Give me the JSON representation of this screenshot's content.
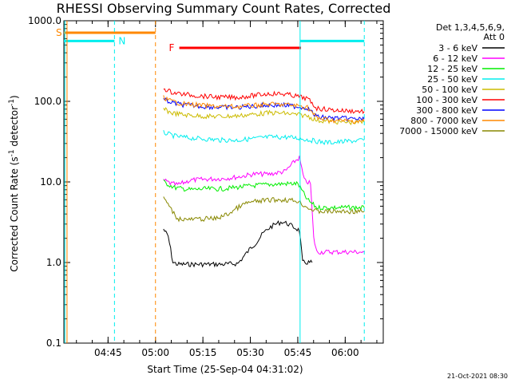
{
  "chart_data": {
    "type": "line",
    "title": "RHESSI Observing Summary Count Rates, Corrected",
    "xlabel": "Start Time (25-Sep-04 04:31:02)",
    "ylabel_main": "Corrected Count Rate (s",
    "ylabel_sup1": "-1",
    "ylabel_mid": " detector",
    "ylabel_sup2": "-1",
    "ylabel_end": ")",
    "x_range_minutes": [
      0,
      101
    ],
    "y_scale": "log",
    "ylim": [
      0.1,
      1000.0
    ],
    "x_ticks": [
      {
        "label": "04:45",
        "minute": 13.97
      },
      {
        "label": "05:00",
        "minute": 28.97
      },
      {
        "label": "05:15",
        "minute": 43.97
      },
      {
        "label": "05:30",
        "minute": 58.97
      },
      {
        "label": "05:45",
        "minute": 73.97
      },
      {
        "label": "06:00",
        "minute": 88.97
      }
    ],
    "y_ticks": [
      {
        "label": "0.1",
        "value": 0.1
      },
      {
        "label": "1.0",
        "value": 1.0
      },
      {
        "label": "10.0",
        "value": 10.0
      },
      {
        "label": "100.0",
        "value": 100.0
      },
      {
        "label": "1000.0",
        "value": 1000.0
      }
    ],
    "legend_header": [
      "Det 1,3,4,5,6,9,",
      "Att 0"
    ],
    "series": [
      {
        "name": "3 - 6 keV",
        "color": "#000000",
        "points": [
          [
            31.5,
            2.6
          ],
          [
            33.0,
            2.1
          ],
          [
            34.5,
            1.0
          ],
          [
            36.0,
            0.95
          ],
          [
            40,
            0.95
          ],
          [
            45,
            0.95
          ],
          [
            50,
            0.95
          ],
          [
            55,
            0.97
          ],
          [
            57,
            1.2
          ],
          [
            59,
            1.5
          ],
          [
            61,
            1.8
          ],
          [
            63,
            2.3
          ],
          [
            65,
            2.7
          ],
          [
            67,
            3.0
          ],
          [
            69,
            3.2
          ],
          [
            71,
            3.0
          ],
          [
            73,
            2.7
          ],
          [
            74.5,
            2.5
          ],
          [
            75.5,
            1.0
          ],
          [
            78.5,
            1.0
          ]
        ]
      },
      {
        "name": "6 - 12 keV",
        "color": "#ff00ff",
        "points": [
          [
            31.5,
            10.5
          ],
          [
            34,
            9.5
          ],
          [
            36,
            9.2
          ],
          [
            40,
            10.5
          ],
          [
            45,
            10.8
          ],
          [
            50,
            11.0
          ],
          [
            55,
            11.5
          ],
          [
            60,
            12.5
          ],
          [
            65,
            12.5
          ],
          [
            70,
            13.5
          ],
          [
            73,
            18.0
          ],
          [
            74.5,
            20.0
          ],
          [
            76,
            10.5
          ],
          [
            78,
            9.5
          ],
          [
            79,
            2.0
          ],
          [
            80,
            1.35
          ],
          [
            95,
            1.35
          ]
        ]
      },
      {
        "name": "12 - 25 keV",
        "color": "#00ee00",
        "points": [
          [
            31.5,
            10.0
          ],
          [
            35,
            8.5
          ],
          [
            40,
            8.0
          ],
          [
            45,
            8.2
          ],
          [
            50,
            8.2
          ],
          [
            55,
            8.6
          ],
          [
            60,
            9.0
          ],
          [
            65,
            9.3
          ],
          [
            70,
            9.5
          ],
          [
            74,
            9.5
          ],
          [
            77,
            6.0
          ],
          [
            80,
            4.8
          ],
          [
            95,
            4.8
          ]
        ]
      },
      {
        "name": "25 - 50 keV",
        "color": "#00eeee",
        "points": [
          [
            31.5,
            41.0
          ],
          [
            35,
            37.0
          ],
          [
            40,
            35.0
          ],
          [
            45,
            34.0
          ],
          [
            50,
            33.0
          ],
          [
            55,
            33.0
          ],
          [
            60,
            34.5
          ],
          [
            65,
            36.0
          ],
          [
            70,
            36.0
          ],
          [
            74,
            35.0
          ],
          [
            78,
            33.0
          ],
          [
            82,
            31.0
          ],
          [
            86,
            31.0
          ],
          [
            90,
            32.0
          ],
          [
            95,
            33.0
          ]
        ]
      },
      {
        "name": "50 - 100 keV",
        "color": "#ccbb00",
        "points": [
          [
            31.5,
            80.0
          ],
          [
            34,
            72.0
          ],
          [
            38,
            68.0
          ],
          [
            45,
            65.0
          ],
          [
            50,
            65.0
          ],
          [
            55,
            66.0
          ],
          [
            60,
            69.0
          ],
          [
            65,
            72.0
          ],
          [
            70,
            71.0
          ],
          [
            74,
            68.0
          ],
          [
            77,
            66.0
          ],
          [
            80,
            58.0
          ],
          [
            85,
            56.0
          ],
          [
            90,
            55.0
          ],
          [
            95,
            55.0
          ]
        ]
      },
      {
        "name": "100 - 300 keV",
        "color": "#ff0000",
        "points": [
          [
            31.5,
            145.0
          ],
          [
            34,
            130.0
          ],
          [
            38,
            122.0
          ],
          [
            45,
            115.0
          ],
          [
            50,
            112.0
          ],
          [
            55,
            112.0
          ],
          [
            60,
            118.0
          ],
          [
            65,
            125.0
          ],
          [
            70,
            123.0
          ],
          [
            74,
            115.0
          ],
          [
            77,
            108.0
          ],
          [
            80,
            82.0
          ],
          [
            85,
            78.0
          ],
          [
            90,
            76.0
          ],
          [
            95,
            75.0
          ]
        ]
      },
      {
        "name": "300 - 800 keV",
        "color": "#0000ff",
        "points": [
          [
            31.5,
            105.0
          ],
          [
            34,
            96.0
          ],
          [
            38,
            90.0
          ],
          [
            45,
            86.0
          ],
          [
            50,
            84.0
          ],
          [
            55,
            84.0
          ],
          [
            60,
            87.0
          ],
          [
            65,
            90.0
          ],
          [
            70,
            89.0
          ],
          [
            74,
            86.0
          ],
          [
            77,
            83.0
          ],
          [
            80,
            64.0
          ],
          [
            85,
            62.0
          ],
          [
            90,
            61.0
          ],
          [
            95,
            60.0
          ]
        ]
      },
      {
        "name": "800 - 7000 keV",
        "color": "#ff8800",
        "points": [
          [
            31.5,
            112.0
          ],
          [
            34,
            100.0
          ],
          [
            38,
            93.0
          ],
          [
            45,
            88.0
          ],
          [
            50,
            86.0
          ],
          [
            55,
            86.0
          ],
          [
            60,
            89.0
          ],
          [
            65,
            92.0
          ],
          [
            70,
            91.0
          ],
          [
            74,
            88.0
          ],
          [
            77,
            85.0
          ],
          [
            80,
            62.0
          ],
          [
            85,
            58.0
          ],
          [
            90,
            57.0
          ],
          [
            95,
            57.0
          ]
        ]
      },
      {
        "name": "7000 - 15000 keV",
        "color": "#888800",
        "points": [
          [
            31.5,
            6.5
          ],
          [
            34,
            4.5
          ],
          [
            36,
            3.5
          ],
          [
            40,
            3.4
          ],
          [
            45,
            3.5
          ],
          [
            48,
            3.5
          ],
          [
            52,
            4.0
          ],
          [
            55,
            4.8
          ],
          [
            58,
            5.5
          ],
          [
            62,
            5.8
          ],
          [
            66,
            6.0
          ],
          [
            70,
            6.0
          ],
          [
            74,
            5.8
          ],
          [
            77,
            4.8
          ],
          [
            80,
            4.3
          ],
          [
            90,
            4.3
          ],
          [
            95,
            4.3
          ]
        ]
      }
    ],
    "markers": {
      "s_label": "S",
      "n_label": "N",
      "f_label": "F",
      "saa": {
        "y_value": 710.0,
        "color": "#ff8800",
        "ranges": [
          [
            0,
            28.97
          ]
        ]
      },
      "night": {
        "y_value": 560.0,
        "color": "#00eeee",
        "ranges": [
          [
            0,
            16.0
          ],
          [
            74.7,
            95.0
          ]
        ]
      },
      "flare": {
        "y_value": 460.0,
        "color": "#ff0000",
        "ranges": [
          [
            36.5,
            75.0
          ]
        ]
      },
      "vlines": [
        {
          "minute": 0.3,
          "style": "solid",
          "color": "#00eeee"
        },
        {
          "minute": 1.0,
          "style": "solid",
          "color": "#ff8800"
        },
        {
          "minute": 16.0,
          "style": "dashed",
          "color": "#00eeee"
        },
        {
          "minute": 28.97,
          "style": "dashed",
          "color": "#ff8800"
        },
        {
          "minute": 74.7,
          "style": "solid",
          "color": "#00eeee"
        },
        {
          "minute": 95.0,
          "style": "dashed",
          "color": "#00eeee"
        }
      ]
    },
    "grid": false,
    "legend_position": "right"
  },
  "footer_stamp": "21-Oct-2021 08:30"
}
